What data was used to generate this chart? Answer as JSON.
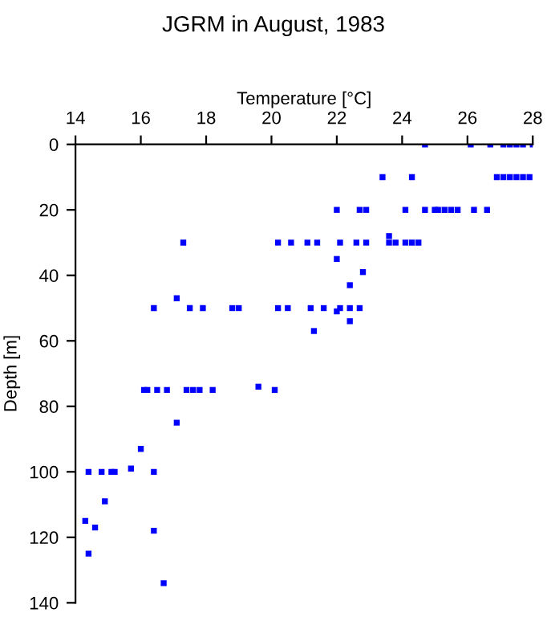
{
  "chart_data": {
    "type": "scatter",
    "title": "JGRM in August, 1983",
    "xlabel": "Temperature [°C]",
    "ylabel": "Depth [m]",
    "x": [
      24.7,
      26.1,
      26.7,
      27.1,
      27.3,
      27.5,
      27.7,
      28.0,
      23.4,
      24.3,
      26.9,
      27.1,
      27.3,
      27.5,
      27.7,
      27.9,
      22.0,
      22.7,
      22.9,
      24.1,
      24.7,
      25.0,
      25.1,
      25.3,
      25.5,
      25.7,
      26.2,
      26.6,
      17.3,
      20.2,
      20.6,
      21.1,
      21.4,
      22.1,
      22.6,
      22.9,
      23.6,
      23.8,
      24.1,
      24.3,
      24.5,
      23.6,
      22.0,
      22.8,
      22.4,
      17.1,
      16.4,
      17.5,
      17.9,
      18.8,
      19.0,
      20.2,
      20.5,
      21.2,
      21.6,
      22.1,
      22.4,
      22.7,
      22.0,
      22.4,
      21.3,
      16.1,
      16.2,
      16.5,
      16.8,
      17.4,
      17.6,
      17.8,
      18.2,
      20.1,
      19.6,
      17.1,
      16.0,
      14.4,
      14.8,
      15.1,
      15.2,
      16.4,
      15.7,
      14.9,
      14.3,
      14.6,
      16.4,
      14.4,
      16.7
    ],
    "values": [
      0,
      0,
      0,
      0,
      0,
      0,
      0,
      0,
      10,
      10,
      10,
      10,
      10,
      10,
      10,
      10,
      20,
      20,
      20,
      20,
      20,
      20,
      20,
      20,
      20,
      20,
      20,
      20,
      30,
      30,
      30,
      30,
      30,
      30,
      30,
      30,
      30,
      30,
      30,
      30,
      30,
      28,
      35,
      39,
      43,
      47,
      50,
      50,
      50,
      50,
      50,
      50,
      50,
      50,
      50,
      50,
      50,
      50,
      51,
      54,
      57,
      75,
      75,
      75,
      75,
      75,
      75,
      75,
      75,
      75,
      74,
      85,
      93,
      100,
      100,
      100,
      100,
      100,
      99,
      109,
      115,
      117,
      118,
      125,
      134
    ],
    "color": "#0000ff",
    "marker": "square",
    "xlim": [
      14,
      28
    ],
    "xticks": [
      14,
      16,
      18,
      20,
      22,
      24,
      26,
      28
    ],
    "ylim": [
      140,
      0
    ],
    "yticks": [
      0,
      20,
      40,
      60,
      80,
      100,
      120,
      140
    ],
    "grid": false,
    "legend": false
  }
}
